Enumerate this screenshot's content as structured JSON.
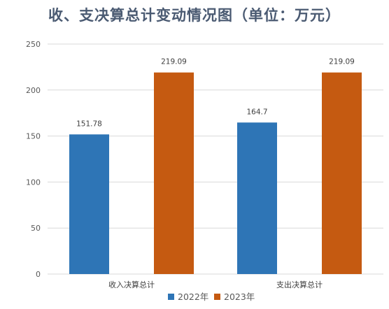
{
  "chart_data": {
    "type": "bar",
    "title": "收、支决算总计变动情况图（单位：万元）",
    "categories": [
      "收入决算总计",
      "支出决算总计"
    ],
    "series": [
      {
        "name": "2022年",
        "values": [
          151.78,
          164.7
        ],
        "labels": [
          "151.78",
          "164.7"
        ],
        "color": "#2e75b6"
      },
      {
        "name": "2023年",
        "values": [
          219.09,
          219.09
        ],
        "labels": [
          "219.09",
          "219.09"
        ],
        "color": "#c55a11"
      }
    ],
    "ylim": [
      0,
      250
    ],
    "yticks": [
      0,
      50,
      100,
      150,
      200,
      250
    ],
    "grid": true,
    "legend_position": "bottom"
  }
}
